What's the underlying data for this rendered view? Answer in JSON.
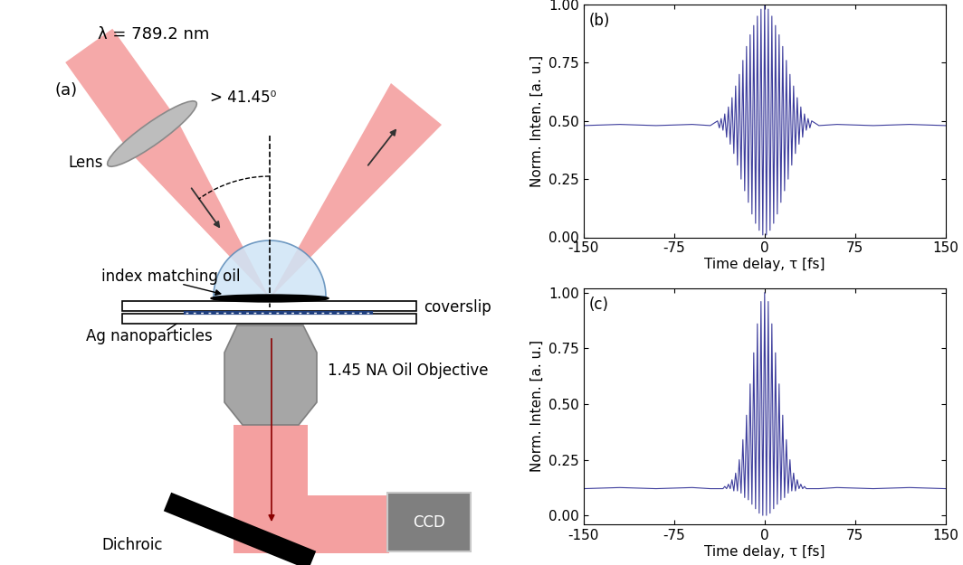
{
  "diagram": {
    "label": "(a)",
    "wavelength": "λ = 789.2 nm",
    "lens": "Lens",
    "angle": "> 41.45⁰",
    "oil": "index matching oil",
    "coverslip": "coverslip",
    "particles": "Ag nanoparticles",
    "objective": "1.45 NA Oil Objective",
    "dichroic": "Dichroic",
    "camera": "CCD"
  },
  "chart_data": [
    {
      "type": "line",
      "annotation": "(b)",
      "x_label": "Time delay, τ [fs]",
      "y_label": "Norm. Inten. [a. u.]",
      "color": "#3c3c9c",
      "x": [
        -150,
        -120,
        -90,
        -60,
        -45,
        -39,
        -37.5,
        -36,
        -34.5,
        -33,
        -31.5,
        -30,
        -28.5,
        -27,
        -25.5,
        -24,
        -22.5,
        -21,
        -19.5,
        -18,
        -16.5,
        -15,
        -13.5,
        -12,
        -10.5,
        -9,
        -7.5,
        -6,
        -4.5,
        -3,
        -1.5,
        0,
        1.5,
        3,
        4.5,
        6,
        7.5,
        9,
        10.5,
        12,
        13.5,
        15,
        16.5,
        18,
        19.5,
        21,
        22.5,
        24,
        25.5,
        27,
        28.5,
        30,
        31.5,
        33,
        34.5,
        36,
        37.5,
        39,
        45,
        60,
        90,
        120,
        150
      ],
      "values": [
        0.48,
        0.485,
        0.48,
        0.485,
        0.48,
        0.5,
        0.47,
        0.51,
        0.46,
        0.53,
        0.43,
        0.56,
        0.4,
        0.6,
        0.36,
        0.65,
        0.31,
        0.7,
        0.25,
        0.76,
        0.2,
        0.82,
        0.15,
        0.87,
        0.1,
        0.91,
        0.06,
        0.95,
        0.03,
        0.98,
        0.01,
        1.0,
        0.01,
        0.98,
        0.03,
        0.95,
        0.06,
        0.91,
        0.1,
        0.87,
        0.15,
        0.82,
        0.2,
        0.76,
        0.25,
        0.7,
        0.31,
        0.65,
        0.36,
        0.6,
        0.4,
        0.56,
        0.43,
        0.53,
        0.46,
        0.51,
        0.47,
        0.5,
        0.48,
        0.485,
        0.48,
        0.485,
        0.48
      ],
      "xlim": [
        -150,
        150
      ],
      "ylim": [
        0,
        1.0
      ],
      "xticks": [
        -150,
        -75,
        0,
        75,
        150
      ],
      "yticks": [
        {
          "value": 0,
          "label": "0.00"
        },
        {
          "value": 0.25,
          "label": "0.25"
        },
        {
          "value": 0.5,
          "label": "0.50"
        },
        {
          "value": 0.75,
          "label": "0.75"
        },
        {
          "value": 1.0,
          "label": "1.00"
        }
      ]
    },
    {
      "type": "line",
      "annotation": "(c)",
      "x_label": "Time delay, τ [fs]",
      "y_label": "Norm. Inten. [a. u.]",
      "color": "#3c3c9c",
      "x": [
        -150,
        -120,
        -90,
        -60,
        -45,
        -39,
        -37.5,
        -36,
        -34.5,
        -33,
        -31.5,
        -30,
        -28.5,
        -27,
        -25.5,
        -24,
        -22.5,
        -21,
        -19.5,
        -18,
        -16.5,
        -15,
        -13.5,
        -12,
        -10.5,
        -9,
        -7.5,
        -6,
        -4.5,
        -3,
        -1.5,
        0,
        1.5,
        3,
        4.5,
        6,
        7.5,
        9,
        10.5,
        12,
        13.5,
        15,
        16.5,
        18,
        19.5,
        21,
        22.5,
        24,
        25.5,
        27,
        28.5,
        30,
        31.5,
        33,
        34.5,
        36,
        37.5,
        39,
        45,
        60,
        90,
        120,
        150
      ],
      "values": [
        0.12,
        0.125,
        0.12,
        0.125,
        0.12,
        0.12,
        0.12,
        0.12,
        0.12,
        0.13,
        0.12,
        0.14,
        0.12,
        0.16,
        0.11,
        0.19,
        0.11,
        0.25,
        0.1,
        0.34,
        0.08,
        0.45,
        0.07,
        0.59,
        0.05,
        0.73,
        0.03,
        0.86,
        0.01,
        0.96,
        0.0,
        1.0,
        0.0,
        0.96,
        0.01,
        0.86,
        0.03,
        0.73,
        0.05,
        0.59,
        0.07,
        0.45,
        0.08,
        0.34,
        0.1,
        0.25,
        0.11,
        0.19,
        0.11,
        0.16,
        0.12,
        0.14,
        0.12,
        0.13,
        0.12,
        0.12,
        0.12,
        0.12,
        0.12,
        0.125,
        0.12,
        0.125,
        0.12
      ],
      "xlim": [
        -150,
        150
      ],
      "ylim": [
        -0.04,
        1.02
      ],
      "xticks": [
        -150,
        -75,
        0,
        75,
        150
      ],
      "yticks": [
        {
          "value": 0,
          "label": "0.00"
        },
        {
          "value": 0.25,
          "label": "0.25"
        },
        {
          "value": 0.5,
          "label": "0.50"
        },
        {
          "value": 0.75,
          "label": "0.75"
        },
        {
          "value": 1.0,
          "label": "1.00"
        }
      ]
    }
  ]
}
